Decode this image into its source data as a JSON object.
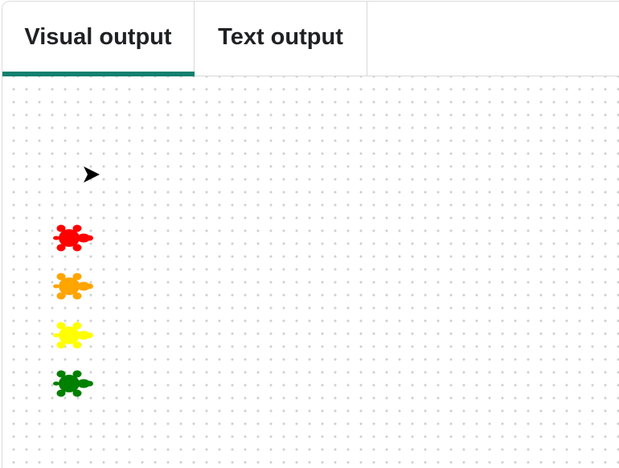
{
  "tabs": [
    {
      "label": "Visual output",
      "selected": true
    },
    {
      "label": "Text output",
      "selected": false
    }
  ],
  "accent_color": "#11806e",
  "turtles": [
    {
      "color": "#ff0000",
      "icon": "turtle-icon"
    },
    {
      "color": "#ffa500",
      "icon": "turtle-icon"
    },
    {
      "color": "#ffff00",
      "icon": "turtle-icon"
    },
    {
      "color": "#008000",
      "icon": "turtle-icon"
    }
  ],
  "cursor": {
    "color": "#000000",
    "icon": "arrow-cursor-icon"
  }
}
